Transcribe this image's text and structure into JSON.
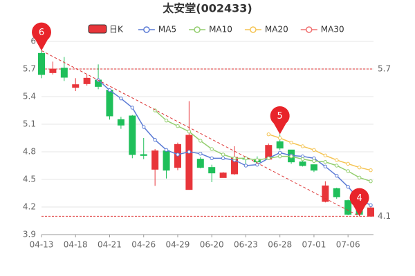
{
  "chart_data": {
    "type": "candlestick",
    "title": "太安堂(002433)",
    "categories": [
      "04-13",
      null,
      null,
      "04-18",
      null,
      null,
      "04-21",
      null,
      null,
      "04-26",
      null,
      null,
      "04-29",
      null,
      null,
      "06-20",
      null,
      null,
      "06-23",
      null,
      null,
      "06-28",
      null,
      null,
      "07-01",
      null,
      null,
      "07-06",
      null,
      null
    ],
    "candles": {
      "name": "日K",
      "up_color": "#e8353a",
      "down_color": "#1fbf5a",
      "open": [
        5.87,
        5.66,
        5.71,
        5.5,
        5.54,
        5.58,
        5.47,
        5.15,
        5.19,
        4.77,
        4.61,
        4.81,
        4.63,
        4.39,
        4.72,
        4.63,
        4.52,
        4.56,
        4.73,
        4.72,
        4.72,
        4.91,
        4.82,
        4.69,
        4.66,
        4.26,
        4.4,
        4.27,
        4.16,
        4.1
      ],
      "high": [
        5.9,
        5.78,
        5.83,
        5.6,
        5.64,
        5.75,
        5.49,
        5.18,
        5.2,
        4.95,
        4.83,
        4.83,
        4.9,
        5.35,
        4.74,
        4.66,
        4.58,
        4.86,
        4.74,
        4.75,
        4.89,
        4.99,
        4.82,
        4.7,
        4.66,
        4.48,
        4.41,
        4.28,
        4.18,
        4.2
      ],
      "low": [
        5.6,
        5.64,
        5.57,
        5.46,
        5.52,
        5.48,
        5.15,
        5.05,
        4.73,
        4.72,
        4.43,
        4.51,
        4.6,
        4.39,
        4.62,
        4.47,
        4.52,
        4.55,
        4.67,
        4.66,
        4.72,
        4.82,
        4.67,
        4.64,
        4.58,
        4.25,
        4.29,
        4.11,
        4.1,
        4.1
      ],
      "close": [
        5.64,
        5.7,
        5.61,
        5.53,
        5.6,
        5.51,
        5.19,
        5.09,
        4.77,
        4.76,
        4.81,
        4.6,
        4.88,
        4.98,
        4.63,
        4.57,
        4.57,
        4.74,
        4.72,
        4.69,
        4.87,
        4.84,
        4.69,
        4.65,
        4.6,
        4.43,
        4.31,
        4.12,
        4.12,
        4.19
      ]
    },
    "series": [
      {
        "name": "MA5",
        "color": "#5b7bd5",
        "values": [
          null,
          null,
          null,
          null,
          null,
          5.58,
          5.47,
          5.38,
          5.28,
          5.07,
          4.93,
          4.82,
          4.77,
          4.8,
          4.78,
          4.73,
          4.73,
          4.71,
          4.65,
          4.66,
          4.73,
          4.79,
          4.76,
          4.75,
          4.73,
          4.64,
          4.54,
          4.42,
          4.28,
          4.22
        ]
      },
      {
        "name": "MA10",
        "color": "#93ce6e",
        "values": [
          null,
          null,
          null,
          null,
          null,
          null,
          null,
          null,
          null,
          null,
          5.25,
          5.14,
          5.08,
          5.02,
          4.92,
          4.83,
          4.77,
          4.73,
          4.73,
          4.71,
          4.73,
          4.75,
          4.75,
          4.72,
          4.7,
          4.69,
          4.65,
          4.59,
          4.52,
          4.48
        ]
      },
      {
        "name": "MA20",
        "color": "#f5c453",
        "values": [
          null,
          null,
          null,
          null,
          null,
          null,
          null,
          null,
          null,
          null,
          null,
          null,
          null,
          null,
          null,
          null,
          null,
          null,
          null,
          null,
          4.99,
          4.95,
          4.9,
          4.86,
          4.82,
          4.76,
          4.71,
          4.67,
          4.63,
          4.6
        ]
      },
      {
        "name": "MA30",
        "color": "#f07070",
        "values": [
          null,
          null,
          null,
          null,
          null,
          null,
          null,
          null,
          null,
          null,
          null,
          null,
          null,
          null,
          null,
          null,
          null,
          null,
          null,
          null,
          null,
          null,
          null,
          null,
          null,
          null,
          null,
          null,
          null,
          null
        ]
      }
    ],
    "ylim": [
      3.9,
      6
    ],
    "yticks": [
      3.9,
      4.2,
      4.5,
      4.8,
      5.1,
      5.4,
      5.7,
      6
    ],
    "grid": true,
    "hlines": [
      5.7,
      4.1
    ],
    "markers": [
      {
        "text": "6",
        "at": 0,
        "of": "high"
      },
      {
        "text": "5",
        "at": 21,
        "of": "high"
      },
      {
        "text": "4",
        "at": 28,
        "of": "low"
      }
    ]
  }
}
